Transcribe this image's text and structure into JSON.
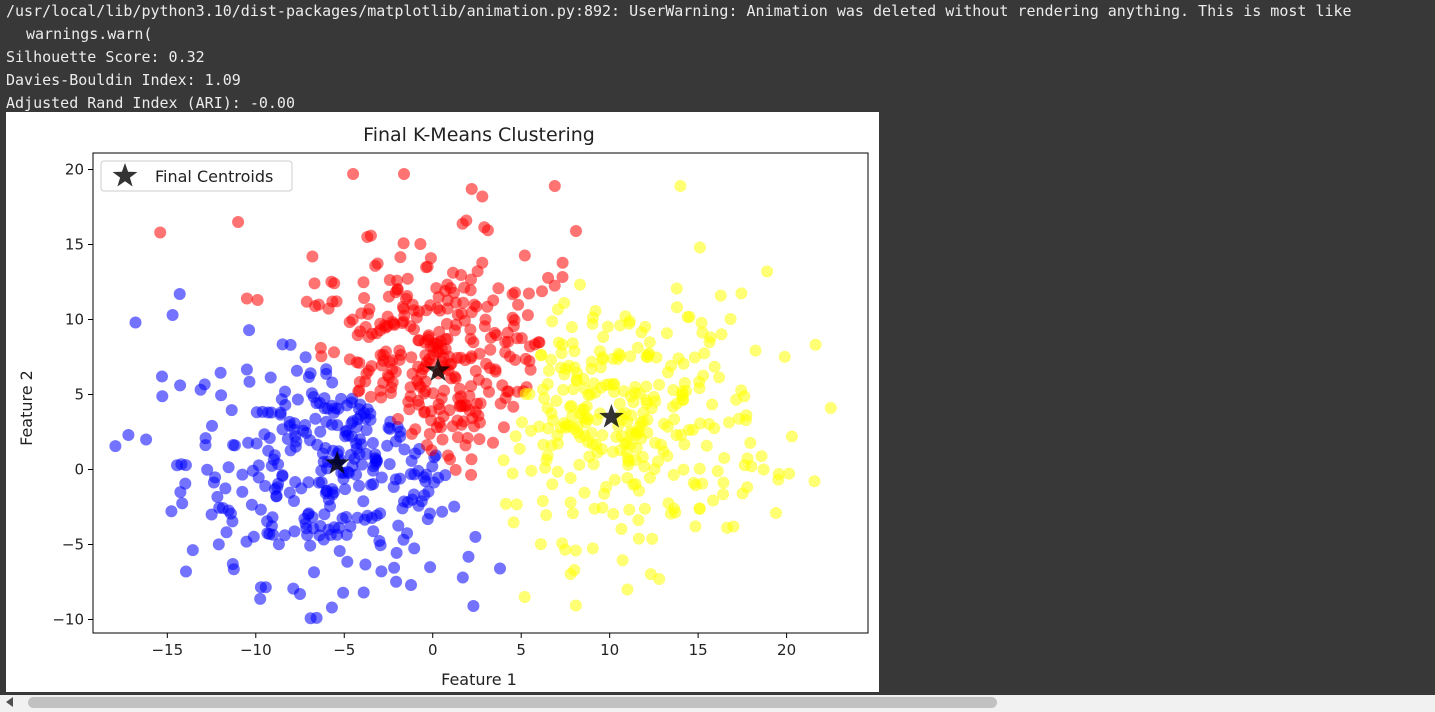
{
  "output": {
    "lines": [
      "/usr/local/lib/python3.10/dist-packages/matplotlib/animation.py:892: UserWarning: Animation was deleted without rendering anything. This is most like",
      "warnings.warn(",
      "Silhouette Score: 0.32",
      "Davies-Bouldin Index: 1.09",
      "Adjusted Rand Index (ARI): -0.00"
    ]
  },
  "chart_data": {
    "type": "scatter",
    "title": "Final K-Means Clustering",
    "xlabel": "Feature 1",
    "ylabel": "Feature 2",
    "xlim": [
      -19.2,
      24.6
    ],
    "ylim": [
      -10.9,
      21.1
    ],
    "xticks": [
      -15,
      -10,
      -5,
      0,
      5,
      10,
      15,
      20
    ],
    "yticks": [
      -10,
      -5,
      0,
      5,
      10,
      15,
      20
    ],
    "grid": false,
    "legend": {
      "position": "top-left",
      "entries": [
        "Final Centroids"
      ]
    },
    "clusters": [
      {
        "color": "#0000ff",
        "center": [
          -5.2,
          0.6
        ],
        "n": 300,
        "outliers": [
          [
            -16.8,
            9.8
          ],
          [
            -14.3,
            11.7
          ],
          [
            -17.2,
            2.3
          ],
          [
            -15.3,
            6.2
          ],
          [
            -12.5,
            -3.0
          ],
          [
            -11.3,
            -6.3
          ],
          [
            -7.5,
            -8.3
          ],
          [
            -5.7,
            -9.2
          ],
          [
            -3.9,
            -8.2
          ],
          [
            1.7,
            -7.2
          ],
          [
            2.3,
            -9.1
          ],
          [
            3.8,
            -6.6
          ],
          [
            -14.7,
            10.3
          ],
          [
            -16.2,
            2.0
          ]
        ]
      },
      {
        "color": "#ff0000",
        "center": [
          0.3,
          6.6
        ],
        "n": 300,
        "outliers": [
          [
            -15.4,
            15.8
          ],
          [
            -11.0,
            16.5
          ],
          [
            -4.5,
            19.7
          ],
          [
            2.2,
            18.7
          ],
          [
            2.8,
            18.2
          ],
          [
            6.9,
            18.9
          ],
          [
            8.1,
            15.9
          ],
          [
            -9.9,
            11.3
          ],
          [
            -10.5,
            11.4
          ],
          [
            -3.7,
            15.5
          ],
          [
            1.9,
            16.6
          ],
          [
            -6.8,
            14.2
          ]
        ]
      },
      {
        "color": "#ffff00",
        "center": [
          10.1,
          3.5
        ],
        "n": 300,
        "outliers": [
          [
            14.0,
            18.9
          ],
          [
            15.1,
            14.8
          ],
          [
            18.9,
            13.2
          ],
          [
            22.5,
            4.1
          ],
          [
            20.3,
            2.2
          ],
          [
            19.4,
            -2.9
          ],
          [
            12.8,
            -7.3
          ],
          [
            11.0,
            -8.0
          ],
          [
            5.2,
            -8.5
          ],
          [
            8.0,
            -6.7
          ],
          [
            17.0,
            -3.8
          ],
          [
            18.7,
            0.0
          ]
        ]
      }
    ],
    "centroids": [
      [
        0.3,
        6.6
      ],
      [
        10.1,
        3.5
      ],
      [
        -5.4,
        0.4
      ]
    ],
    "colors": {
      "centroid": "#000000",
      "axes": "#000000"
    }
  }
}
